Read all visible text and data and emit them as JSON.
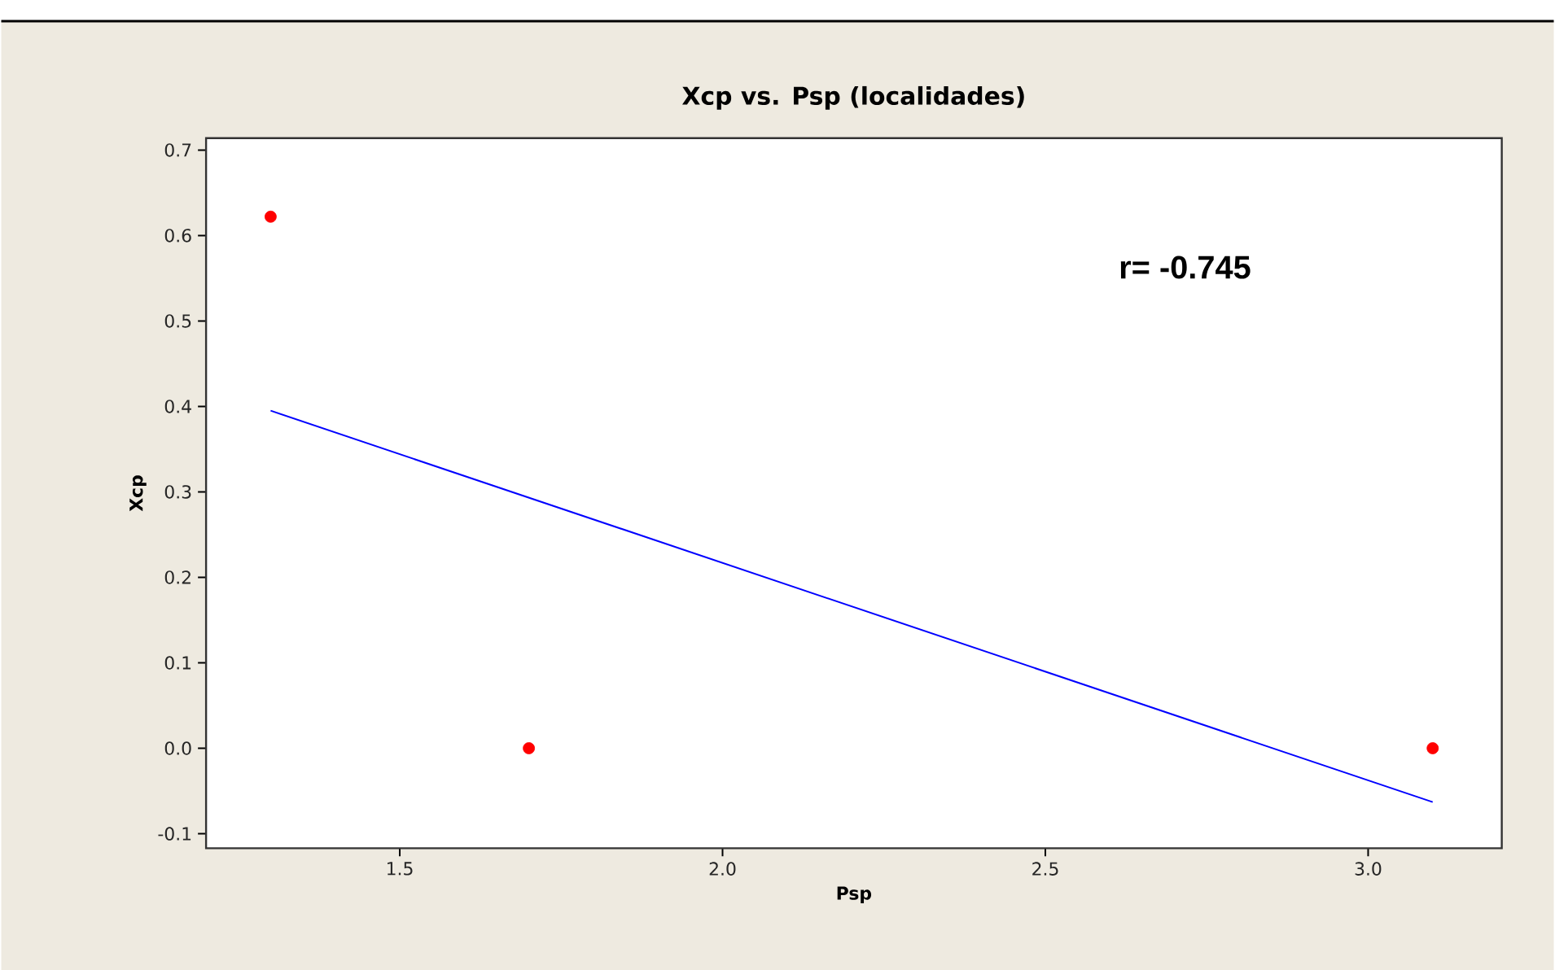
{
  "chart_data": {
    "type": "scatter",
    "title": "Xcp vs. Psp (localidades)",
    "xlabel": "Psp",
    "ylabel": "Xcp",
    "xlim": [
      1.2,
      3.207
    ],
    "ylim": [
      -0.117,
      0.714
    ],
    "xticks": [
      {
        "value": 1.5,
        "label": "1.5"
      },
      {
        "value": 2.0,
        "label": "2.0"
      },
      {
        "value": 2.5,
        "label": "2.5"
      },
      {
        "value": 3.0,
        "label": "3.0"
      }
    ],
    "yticks": [
      {
        "value": -0.1,
        "label": "-0.1"
      },
      {
        "value": 0.0,
        "label": "0.0"
      },
      {
        "value": 0.1,
        "label": "0.1"
      },
      {
        "value": 0.2,
        "label": "0.2"
      },
      {
        "value": 0.3,
        "label": "0.3"
      },
      {
        "value": 0.4,
        "label": "0.4"
      },
      {
        "value": 0.5,
        "label": "0.5"
      },
      {
        "value": 0.6,
        "label": "0.6"
      },
      {
        "value": 0.7,
        "label": "0.7"
      }
    ],
    "series": [
      {
        "color": "#ff0000",
        "marker": "circle",
        "x": [
          1.3,
          1.7,
          3.1
        ],
        "values": [
          0.622,
          0.0,
          0.0
        ]
      },
      {
        "type": "line",
        "color": "#0000ff",
        "marker": "none",
        "line_style": "solid",
        "x": [
          1.3,
          3.1
        ],
        "values": [
          0.395,
          -0.063
        ]
      }
    ],
    "annotations": [
      "r= -0.745"
    ]
  }
}
